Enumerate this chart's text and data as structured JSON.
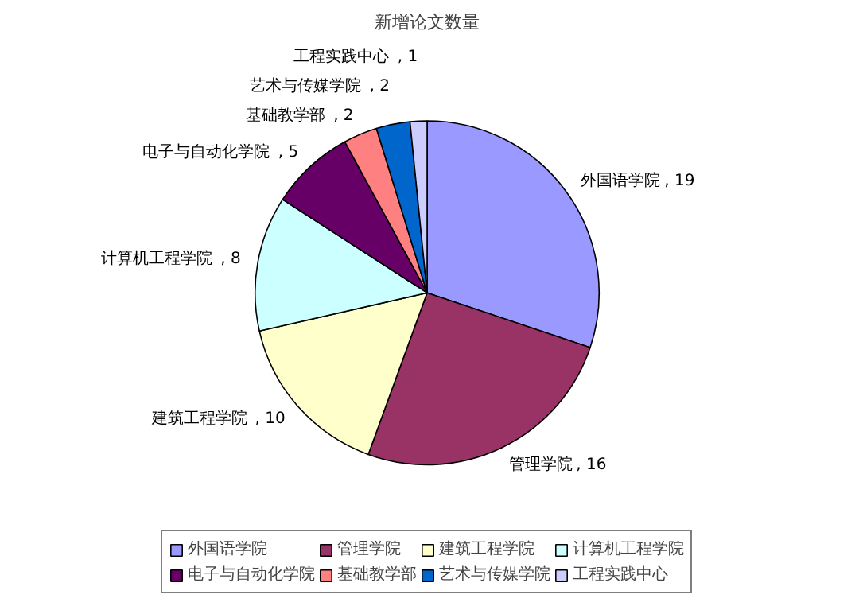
{
  "chart_data": {
    "type": "pie",
    "title": "新增论文数量",
    "categories": [
      "外国语学院",
      "管理学院",
      "建筑工程学院",
      "计算机工程学院",
      "电子与自动化学院",
      "基础教学部",
      "艺术与传媒学院",
      "工程实践中心"
    ],
    "values": [
      19,
      16,
      10,
      8,
      5,
      2,
      2,
      1
    ],
    "colors": [
      "#9999ff",
      "#993366",
      "#ffffcc",
      "#ccffff",
      "#660066",
      "#ff8080",
      "#0066cc",
      "#ccccff"
    ],
    "value_labels": [
      ", 19",
      ", 16",
      ", 10",
      ", 8",
      ", 5",
      ", 2",
      ", 2",
      ", 1"
    ],
    "legend": "bottom"
  }
}
